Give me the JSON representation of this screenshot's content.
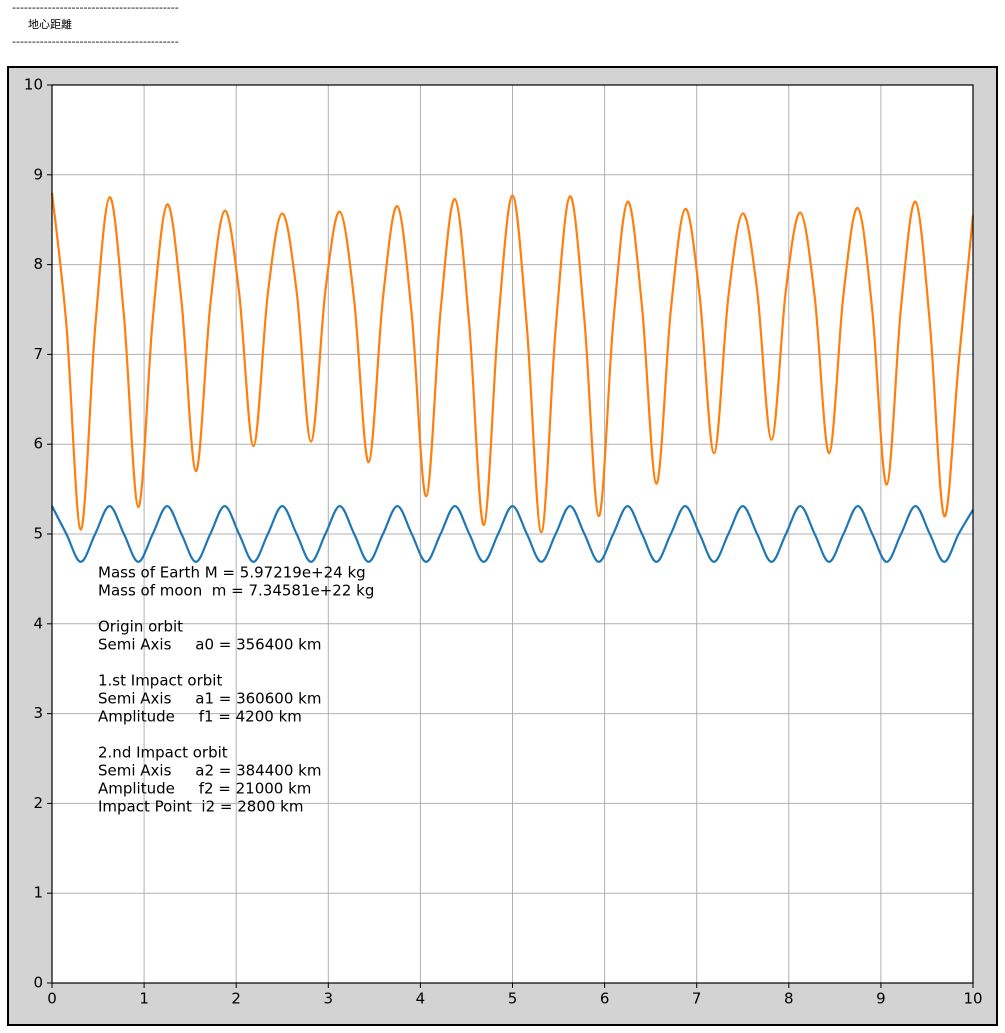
{
  "header": {
    "rule_top": "------------------------------------------",
    "title": "地心距離",
    "rule_bottom": "------------------------------------------"
  },
  "chart_data": {
    "type": "line",
    "x": [
      0,
      0.15625,
      0.3125,
      0.46875,
      0.625,
      0.78125,
      0.9375,
      1.09375,
      1.25,
      1.40625,
      1.5625,
      1.71875,
      1.875,
      2.03125,
      2.1875,
      2.34375,
      2.5,
      2.65625,
      2.8125,
      2.96875,
      3.125,
      3.28125,
      3.4375,
      3.59375,
      3.75,
      3.90625,
      4.0625,
      4.21875,
      4.375,
      4.53125,
      4.6875,
      4.84375,
      5,
      5.15625,
      5.3125,
      5.46875,
      5.625,
      5.78125,
      5.9375,
      6.09375,
      6.25,
      6.40625,
      6.5625,
      6.71875,
      6.875,
      7.03125,
      7.1875,
      7.34375,
      7.5,
      7.65625,
      7.8125,
      7.96875,
      8.125,
      8.28125,
      8.4375,
      8.59375,
      8.75,
      8.90625,
      9.0625,
      9.21875,
      9.375,
      9.53125,
      9.6875,
      9.84375,
      10
    ],
    "series": [
      {
        "color": "#1f77b4",
        "values": [
          5.31,
          5.0,
          4.69,
          5.0,
          5.31,
          5.0,
          4.69,
          5.0,
          5.31,
          5.0,
          4.69,
          5.0,
          5.31,
          5.0,
          4.69,
          5.0,
          5.31,
          5.0,
          4.69,
          5.0,
          5.31,
          5.0,
          4.69,
          5.0,
          5.31,
          5.0,
          4.69,
          5.0,
          5.31,
          5.0,
          4.69,
          5.0,
          5.31,
          5.0,
          4.69,
          5.0,
          5.31,
          5.0,
          4.69,
          5.0,
          5.31,
          5.0,
          4.69,
          5.0,
          5.31,
          5.0,
          4.69,
          5.0,
          5.31,
          5.0,
          4.69,
          5.0,
          5.31,
          5.0,
          4.69,
          5.0,
          5.31,
          5.0,
          4.69,
          5.0,
          5.31,
          5.0,
          4.69,
          5.0,
          5.27
        ]
      },
      {
        "color": "#ff7f0e",
        "values": [
          8.8,
          7.33,
          5.05,
          7.3,
          8.75,
          7.43,
          5.3,
          7.39,
          8.67,
          7.59,
          5.7,
          7.55,
          8.6,
          7.69,
          5.98,
          7.68,
          8.57,
          7.7,
          6.03,
          7.71,
          8.59,
          7.6,
          5.8,
          7.63,
          8.65,
          7.44,
          5.42,
          7.48,
          8.73,
          7.32,
          5.1,
          7.34,
          8.77,
          7.3,
          5.02,
          7.29,
          8.76,
          7.38,
          5.2,
          7.35,
          8.7,
          7.53,
          5.56,
          7.49,
          8.62,
          7.66,
          5.9,
          7.64,
          8.57,
          7.71,
          6.05,
          7.72,
          8.58,
          7.64,
          5.9,
          7.67,
          8.63,
          7.49,
          5.55,
          7.53,
          8.7,
          7.35,
          5.2,
          6.9,
          8.55
        ]
      }
    ],
    "xlim": [
      0,
      10
    ],
    "ylim": [
      0,
      10
    ],
    "xticks": [
      0,
      1,
      2,
      3,
      4,
      5,
      6,
      7,
      8,
      9,
      10
    ],
    "yticks": [
      0,
      1,
      2,
      3,
      4,
      5,
      6,
      7,
      8,
      9,
      10
    ],
    "grid": true,
    "annotation": [
      [
        "Mass of Earth M = 5.97219e+24 kg",
        "Mass of moon  m = 7.34581e+22 kg"
      ],
      [
        "Origin orbit",
        "Semi Axis     a0 = 356400 km"
      ],
      [
        "1.st Impact orbit",
        "Semi Axis     a1 = 360600 km",
        "Amplitude     f1 = 4200 km"
      ],
      [
        "2.nd Impact orbit",
        "Semi Axis     a2 = 384400 km",
        "Amplitude     f2 = 21000 km",
        "Impact Point  i2 = 2800 km"
      ]
    ]
  }
}
